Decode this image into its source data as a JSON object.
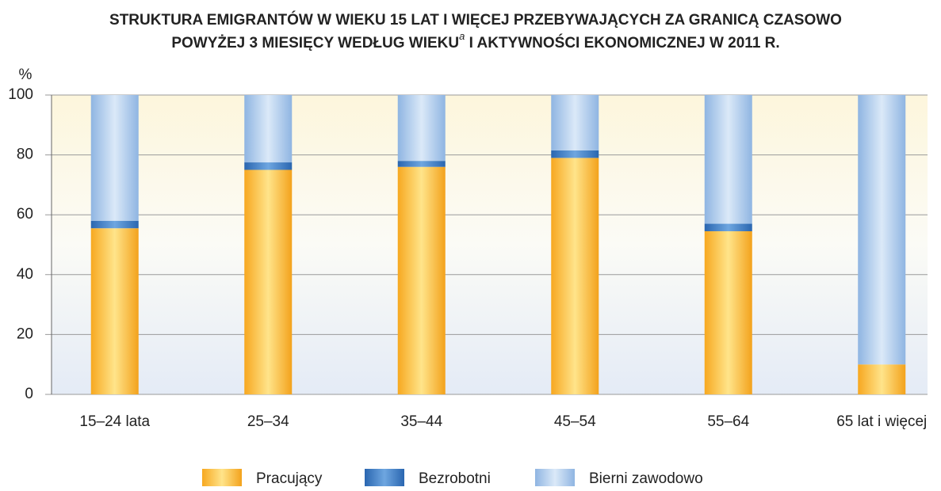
{
  "chart_data": {
    "type": "stacked_bar",
    "title": {
      "line1": "STRUKTURA EMIGRANTÓW W WIEKU 15 LAT I WIĘCEJ PRZEBYWAJĄCYCH ZA GRANICĄ CZASOWO",
      "line2": "POWYŻEJ 3 MIESIĘCY WEDŁUG WIEKU",
      "superscript": "a",
      "line2_end": " I AKTYWNOŚCI EKONOMICZNEJ W 2011 R."
    },
    "y_label": "%",
    "categories": [
      "15–24 lata",
      "25–34",
      "35–44",
      "45–54",
      "55–64",
      "65 lat i więcej"
    ],
    "series": [
      {
        "name": "Pracujący",
        "color": "#f5b335",
        "values": [
          55.5,
          75,
          76,
          79,
          54.5,
          10
        ]
      },
      {
        "name": "Bezrobotni",
        "color": "#3f7fc4",
        "values": [
          2.5,
          2.5,
          2,
          2.5,
          2.5,
          0
        ]
      },
      {
        "name": "Bierni zawodowo",
        "color": "#a9c8ea",
        "values": [
          42,
          22.5,
          22,
          18.5,
          43,
          90
        ]
      }
    ],
    "ylim": [
      0,
      100
    ],
    "yticks": [
      0,
      20,
      40,
      60,
      80,
      100
    ],
    "grid": true
  }
}
